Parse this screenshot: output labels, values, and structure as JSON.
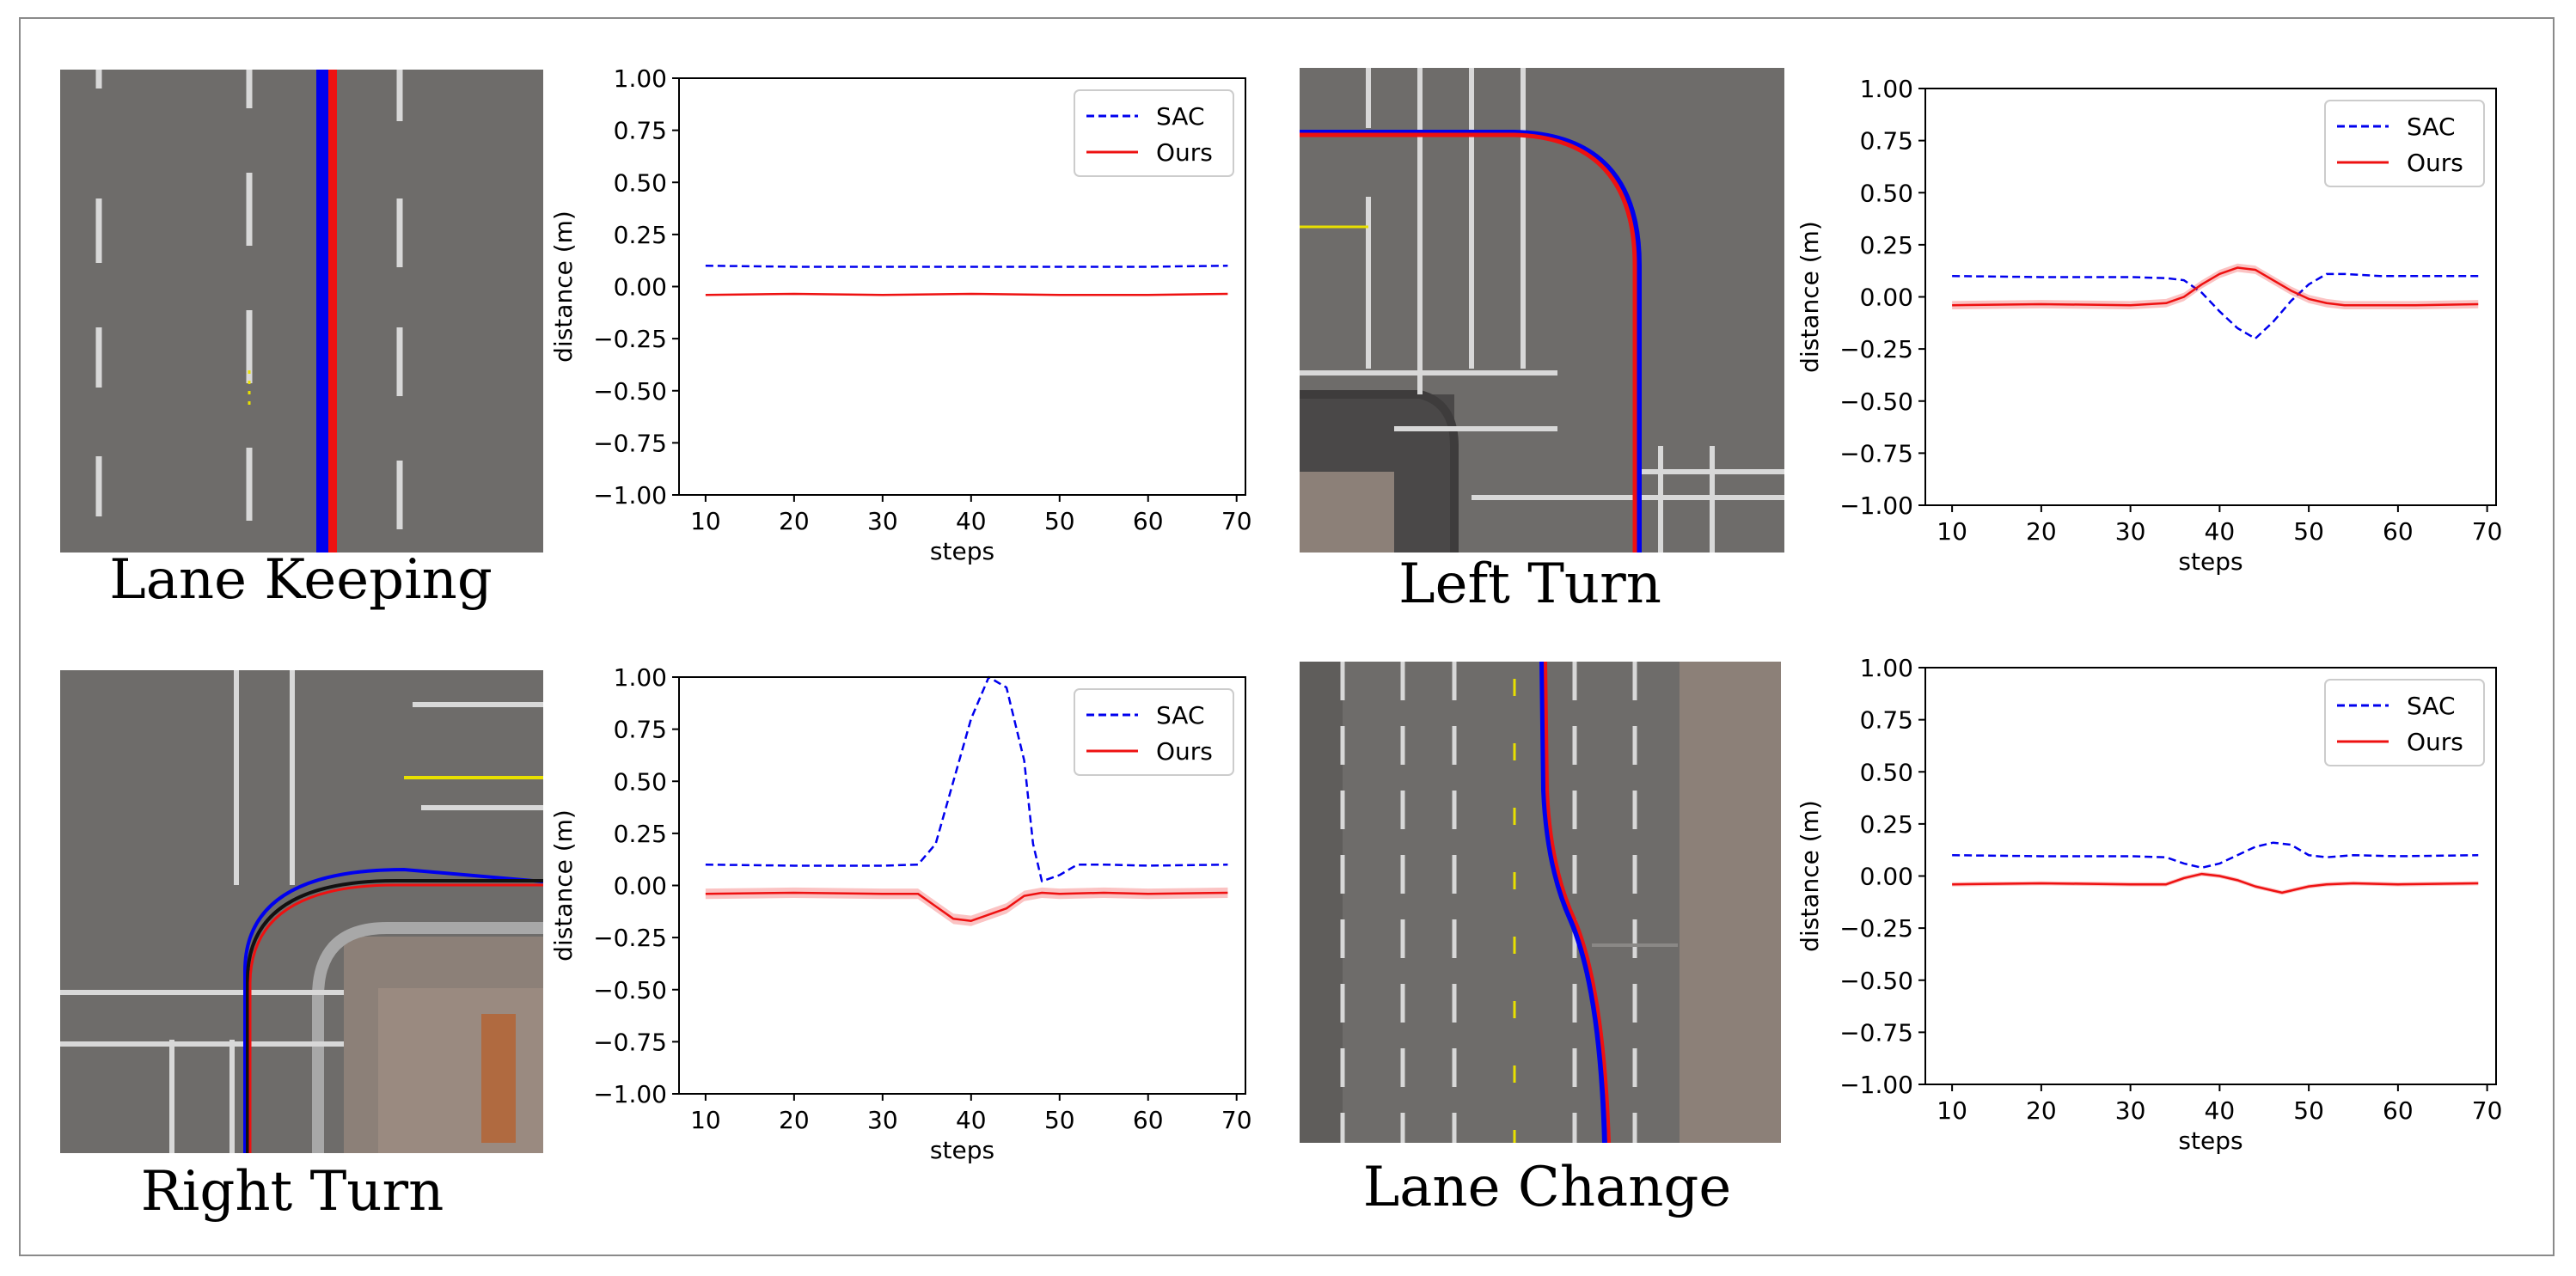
{
  "captions": {
    "lane_keeping": "Lane Keeping",
    "left_turn": "Left Turn",
    "right_turn": "Right Turn",
    "lane_change": "Lane Change"
  },
  "colors": {
    "sac": "#0000ee",
    "ours": "#ee1111",
    "road": "#6d6b69",
    "sidewalk": "#8c8078"
  },
  "chart_data": [
    {
      "type": "line",
      "panel": "lane-keeping",
      "xlabel": "steps",
      "ylabel": "distance (m)",
      "xlim": [
        7,
        71
      ],
      "ylim": [
        -1.0,
        1.0
      ],
      "xticks": [
        10,
        20,
        30,
        40,
        50,
        60,
        70
      ],
      "yticks": [
        1.0,
        0.75,
        0.5,
        0.25,
        0.0,
        -0.25,
        -0.5,
        -0.75,
        -1.0
      ],
      "ytick_labels": [
        "1.00",
        "0.75",
        "0.50",
        "0.25",
        "0.00",
        "−0.25",
        "−0.50",
        "−0.75",
        "−1.00"
      ],
      "legend": {
        "position": "top-right",
        "entries": [
          "SAC",
          "Ours"
        ]
      },
      "series": [
        {
          "name": "SAC",
          "style": "dashed",
          "x": [
            10,
            20,
            30,
            40,
            50,
            60,
            69
          ],
          "y": [
            0.1,
            0.095,
            0.095,
            0.095,
            0.095,
            0.095,
            0.1
          ],
          "band": 0
        },
        {
          "name": "Ours",
          "style": "solid",
          "x": [
            10,
            20,
            30,
            40,
            50,
            60,
            69
          ],
          "y": [
            -0.04,
            -0.035,
            -0.04,
            -0.035,
            -0.04,
            -0.04,
            -0.035
          ],
          "band": 0
        }
      ]
    },
    {
      "type": "line",
      "panel": "left-turn",
      "xlabel": "steps",
      "ylabel": "distance (m)",
      "xlim": [
        7,
        71
      ],
      "ylim": [
        -1.0,
        1.0
      ],
      "xticks": [
        10,
        20,
        30,
        40,
        50,
        60,
        70
      ],
      "yticks": [
        1.0,
        0.75,
        0.5,
        0.25,
        0.0,
        -0.25,
        -0.5,
        -0.75,
        -1.0
      ],
      "ytick_labels": [
        "1.00",
        "0.75",
        "0.50",
        "0.25",
        "0.00",
        "−0.25",
        "−0.50",
        "−0.75",
        "−1.00"
      ],
      "legend": {
        "position": "top-right",
        "entries": [
          "SAC",
          "Ours"
        ]
      },
      "series": [
        {
          "name": "SAC",
          "style": "dashed",
          "x": [
            10,
            20,
            30,
            34,
            36,
            38,
            40,
            42,
            44,
            46,
            48,
            50,
            52,
            54,
            58,
            62,
            69
          ],
          "y": [
            0.1,
            0.095,
            0.095,
            0.09,
            0.08,
            0.02,
            -0.07,
            -0.15,
            -0.2,
            -0.12,
            -0.02,
            0.06,
            0.11,
            0.11,
            0.1,
            0.1,
            0.1
          ],
          "band": 0
        },
        {
          "name": "Ours",
          "style": "solid",
          "x": [
            10,
            20,
            30,
            34,
            36,
            38,
            40,
            42,
            44,
            46,
            48,
            50,
            52,
            54,
            58,
            62,
            69
          ],
          "y": [
            -0.04,
            -0.035,
            -0.04,
            -0.03,
            0.0,
            0.06,
            0.11,
            0.14,
            0.13,
            0.08,
            0.03,
            -0.01,
            -0.03,
            -0.04,
            -0.04,
            -0.04,
            -0.035
          ],
          "band": 0.02
        }
      ]
    },
    {
      "type": "line",
      "panel": "right-turn",
      "xlabel": "steps",
      "ylabel": "distance (m)",
      "xlim": [
        7,
        71
      ],
      "ylim": [
        -1.0,
        1.0
      ],
      "xticks": [
        10,
        20,
        30,
        40,
        50,
        60,
        70
      ],
      "yticks": [
        1.0,
        0.75,
        0.5,
        0.25,
        0.0,
        -0.25,
        -0.5,
        -0.75,
        -1.0
      ],
      "ytick_labels": [
        "1.00",
        "0.75",
        "0.50",
        "0.25",
        "0.00",
        "−0.25",
        "−0.50",
        "−0.75",
        "−1.00"
      ],
      "legend": {
        "position": "top-right",
        "entries": [
          "SAC",
          "Ours"
        ]
      },
      "series": [
        {
          "name": "SAC",
          "style": "dashed",
          "x": [
            10,
            20,
            30,
            34,
            36,
            38,
            40,
            42,
            44,
            46,
            47,
            48,
            50,
            52,
            55,
            60,
            69
          ],
          "y": [
            0.1,
            0.095,
            0.095,
            0.1,
            0.2,
            0.5,
            0.8,
            1.0,
            0.95,
            0.6,
            0.2,
            0.02,
            0.05,
            0.1,
            0.1,
            0.095,
            0.1
          ],
          "band": 0
        },
        {
          "name": "Ours",
          "style": "solid",
          "x": [
            10,
            20,
            30,
            34,
            36,
            38,
            40,
            42,
            44,
            46,
            48,
            50,
            55,
            60,
            69
          ],
          "y": [
            -0.04,
            -0.035,
            -0.04,
            -0.04,
            -0.1,
            -0.16,
            -0.17,
            -0.14,
            -0.11,
            -0.05,
            -0.035,
            -0.04,
            -0.035,
            -0.04,
            -0.035
          ],
          "band": 0.025
        }
      ]
    },
    {
      "type": "line",
      "panel": "lane-change",
      "xlabel": "steps",
      "ylabel": "distance (m)",
      "xlim": [
        7,
        71
      ],
      "ylim": [
        -1.0,
        1.0
      ],
      "xticks": [
        10,
        20,
        30,
        40,
        50,
        60,
        70
      ],
      "yticks": [
        1.0,
        0.75,
        0.5,
        0.25,
        0.0,
        -0.25,
        -0.5,
        -0.75,
        -1.0
      ],
      "ytick_labels": [
        "1.00",
        "0.75",
        "0.50",
        "0.25",
        "0.00",
        "−0.25",
        "−0.50",
        "−0.75",
        "−1.00"
      ],
      "legend": {
        "position": "top-right",
        "entries": [
          "SAC",
          "Ours"
        ]
      },
      "series": [
        {
          "name": "SAC",
          "style": "dashed",
          "x": [
            10,
            20,
            30,
            34,
            36,
            38,
            40,
            42,
            44,
            46,
            48,
            50,
            52,
            55,
            60,
            69
          ],
          "y": [
            0.1,
            0.095,
            0.095,
            0.09,
            0.06,
            0.04,
            0.06,
            0.1,
            0.14,
            0.16,
            0.15,
            0.1,
            0.09,
            0.1,
            0.095,
            0.1
          ],
          "band": 0
        },
        {
          "name": "Ours",
          "style": "solid",
          "x": [
            10,
            20,
            30,
            34,
            36,
            38,
            40,
            42,
            44,
            46,
            47,
            48,
            50,
            52,
            55,
            60,
            69
          ],
          "y": [
            -0.04,
            -0.035,
            -0.04,
            -0.04,
            -0.01,
            0.01,
            0.0,
            -0.02,
            -0.05,
            -0.07,
            -0.08,
            -0.07,
            -0.05,
            -0.04,
            -0.035,
            -0.04,
            -0.035
          ],
          "band": 0.01
        }
      ]
    }
  ]
}
